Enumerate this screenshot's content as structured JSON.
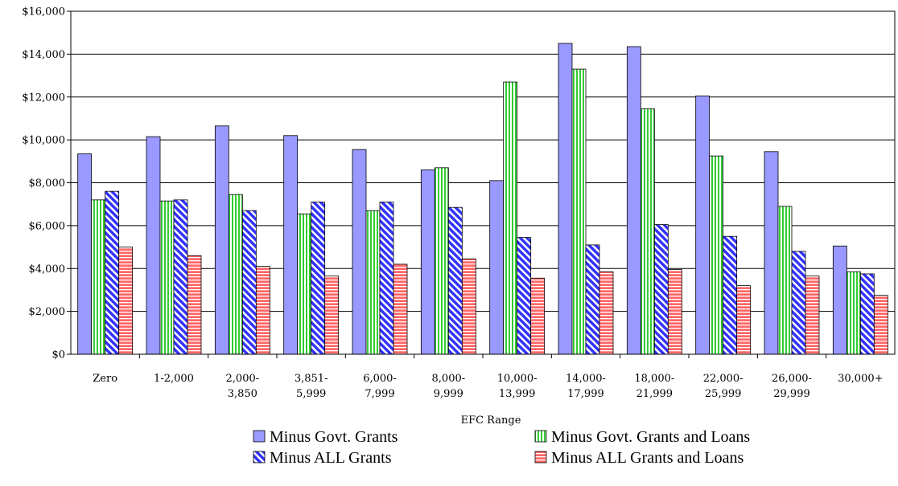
{
  "chart_data": {
    "type": "bar",
    "title": "",
    "xlabel": "EFC Range",
    "ylabel": "",
    "ylim": [
      0,
      16000
    ],
    "ytick_step": 2000,
    "ytick_labels": [
      "$0",
      "$2,000",
      "$4,000",
      "$6,000",
      "$8,000",
      "$10,000",
      "$12,000",
      "$14,000",
      "$16,000"
    ],
    "grid": true,
    "legend_position": "bottom",
    "categories": [
      [
        "Zero"
      ],
      [
        "1-2,000"
      ],
      [
        "2,000-",
        "3,850"
      ],
      [
        "3,851-",
        "5,999"
      ],
      [
        "6,000-",
        "7,999"
      ],
      [
        "8,000-",
        "9,999"
      ],
      [
        "10,000-",
        "13,999"
      ],
      [
        "14,000-",
        "17,999"
      ],
      [
        "18,000-",
        "21,999"
      ],
      [
        "22,000-",
        "25,999"
      ],
      [
        "26,000-",
        "29,999"
      ],
      [
        "30,000+"
      ]
    ],
    "series": [
      {
        "name": "Minus Govt. Grants",
        "color": "#9999ff",
        "pattern": "solid",
        "values": [
          9350,
          10150,
          10650,
          10200,
          9550,
          8600,
          8100,
          14500,
          14350,
          12050,
          9450,
          5050
        ]
      },
      {
        "name": "Minus Govt. Grants and Loans",
        "color": "#99ff99",
        "pattern": "vertical-stripes",
        "values": [
          7200,
          7150,
          7450,
          6550,
          6700,
          8700,
          12700,
          13300,
          11450,
          9250,
          6900,
          3850
        ]
      },
      {
        "name": "Minus ALL Grants",
        "color": "#3333ff",
        "pattern": "diagonal-stripes",
        "values": [
          7600,
          7200,
          6700,
          7100,
          7100,
          6850,
          5450,
          5100,
          6050,
          5500,
          4800,
          3750
        ]
      },
      {
        "name": "Minus ALL Grants and Loans",
        "color": "#ff6666",
        "pattern": "horizontal-stripes",
        "values": [
          5000,
          4600,
          4100,
          3650,
          4200,
          4450,
          3550,
          3850,
          3950,
          3200,
          3650,
          2750
        ]
      }
    ]
  }
}
